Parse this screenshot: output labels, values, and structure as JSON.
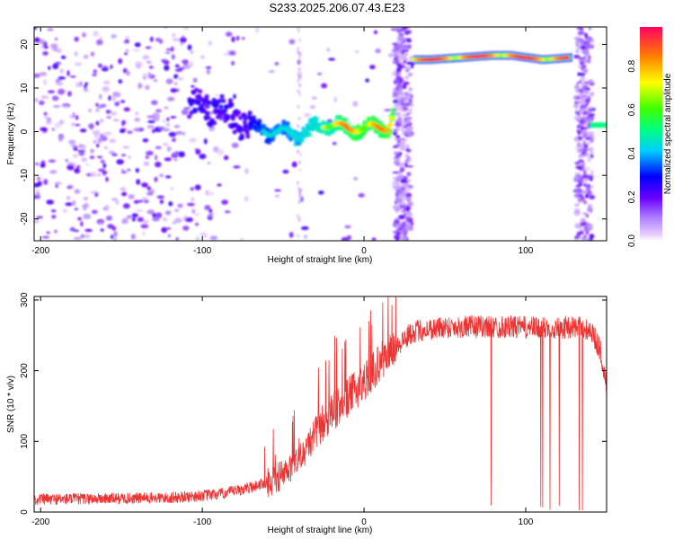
{
  "title": "S233.2025.206.07.43.E23",
  "colors": {
    "line": "#ee3333",
    "axis": "#000000",
    "background": "#ffffff"
  },
  "chart_data": [
    {
      "type": "heatmap",
      "xlabel": "Height of straight line (km)",
      "ylabel": "Frequency (Hz)",
      "xlim": [
        -204,
        150
      ],
      "ylim": [
        -25,
        24
      ],
      "xticks": [
        "-200",
        "-100",
        "0",
        "100"
      ],
      "yticks": [
        "-20",
        "-10",
        "0",
        "10",
        "20"
      ],
      "colorbar": {
        "label": "Normalized spectral amplitude",
        "range": [
          0,
          0.98
        ],
        "ticks": [
          "0.0",
          "0.2",
          "0.4",
          "0.6",
          "0.8"
        ],
        "colormap": "rainbow (purple-blue-cyan-green-yellow-red)"
      },
      "ridge": {
        "x": [
          -100,
          -90,
          -80,
          -70,
          -60,
          -50,
          -40,
          -30,
          -20,
          -10,
          0,
          10,
          15,
          30,
          40,
          60,
          80,
          90,
          100,
          110,
          128,
          140,
          150
        ],
        "y": [
          6,
          5,
          3,
          1.5,
          0,
          0,
          -1,
          1,
          2,
          0.5,
          1,
          1,
          1,
          16.5,
          16.5,
          17,
          17.5,
          17.5,
          17,
          16.5,
          17,
          1.5,
          1.5
        ]
      },
      "noise_bands_x": [
        [
          19,
          29
        ],
        [
          131,
          141
        ]
      ]
    },
    {
      "type": "line",
      "xlabel": "Height of straight line (km)",
      "ylabel": "SNR (10 * v/v)",
      "xlim": [
        -204,
        150
      ],
      "ylim": [
        0,
        305
      ],
      "xticks": [
        "-200",
        "-100",
        "0",
        "100"
      ],
      "yticks": [
        "0",
        "100",
        "200",
        "300"
      ],
      "trend": {
        "x": [
          -204,
          -120,
          -90,
          -75,
          -60,
          -48,
          -38,
          -28,
          -15,
          0,
          15,
          30,
          50,
          70,
          90,
          110,
          130,
          140,
          146,
          150
        ],
        "y": [
          18,
          20,
          25,
          32,
          42,
          55,
          80,
          120,
          150,
          185,
          225,
          255,
          262,
          262,
          262,
          260,
          262,
          258,
          230,
          180
        ]
      },
      "dropouts_x_range": [
        74,
        150
      ]
    }
  ]
}
